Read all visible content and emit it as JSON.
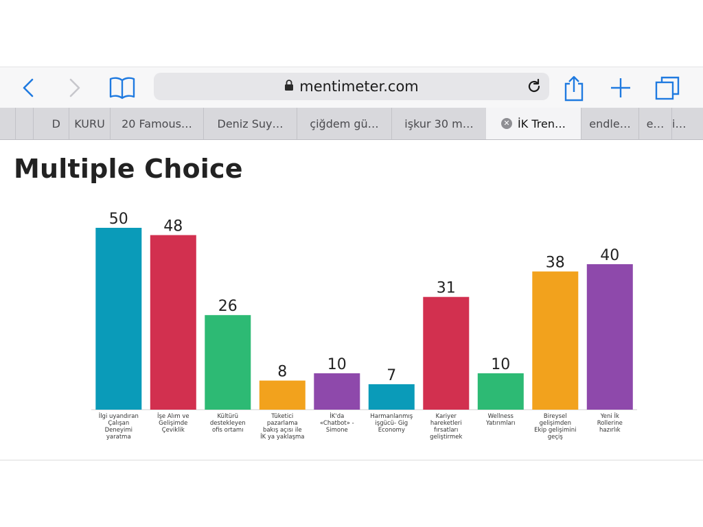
{
  "browser": {
    "url": "mentimeter.com",
    "tabs": [
      {
        "label": "D"
      },
      {
        "label": "KURU"
      },
      {
        "label": "20 Famous…"
      },
      {
        "label": "Deniz Suy…"
      },
      {
        "label": "çiğdem gü…"
      },
      {
        "label": "işkur 30 m…"
      },
      {
        "label": "İK Tren…",
        "active": true
      },
      {
        "label": "endle…"
      },
      {
        "label": "e…"
      },
      {
        "label": "i…"
      }
    ]
  },
  "page": {
    "title": "Multiple Choice"
  },
  "chart_data": {
    "type": "bar",
    "title": "Multiple Choice",
    "categories": [
      "İlgi uyandıran Çalışan Deneyimi yaratma",
      "İşe Alım ve Gelişimde Çeviklik",
      "Kültürü destekleyen ofis ortamı",
      "Tüketici pazarlama bakış açısı ile İK ya yaklaşma",
      "İK'da «Chatbot» - Simone",
      "Harmanlanmış işgücü- Gig Economy",
      "Kariyer hareketleri fırsatları geliştirmek",
      "Wellness Yatırımları",
      "Bireysel gelişimden Ekip gelişimini geçiş",
      "Yeni İk Rollerine hazırlık"
    ],
    "category_lines": [
      [
        "İlgi uyandıran",
        "Çalışan",
        "Deneyimi",
        "yaratma"
      ],
      [
        "İşe Alım ve",
        "Gelişimde",
        "Çeviklik"
      ],
      [
        "Kültürü",
        "destekleyen",
        "ofis ortamı"
      ],
      [
        "Tüketici",
        "pazarlama",
        "bakış açısı ile",
        "İK ya yaklaşma"
      ],
      [
        "İK'da",
        "«Chatbot» -",
        "Simone"
      ],
      [
        "Harmanlanmış",
        "işgücü- Gig",
        "Economy"
      ],
      [
        "Kariyer",
        "hareketleri",
        "fırsatları",
        "geliştirmek"
      ],
      [
        "Wellness",
        "Yatırımları"
      ],
      [
        "Bireysel",
        "gelişimden",
        "Ekip gelişimini",
        "geçiş"
      ],
      [
        "Yeni İk",
        "Rollerine",
        "hazırlık"
      ]
    ],
    "values": [
      50,
      48,
      26,
      8,
      10,
      7,
      31,
      10,
      38,
      40
    ],
    "colors": [
      "#0a9bb9",
      "#d2304f",
      "#2dba74",
      "#f2a21d",
      "#8e49ab",
      "#0a9bb9",
      "#d2304f",
      "#2dba74",
      "#f2a21d",
      "#8e49ab"
    ],
    "ylim": [
      0,
      50
    ],
    "grid": false,
    "legend": "none"
  }
}
